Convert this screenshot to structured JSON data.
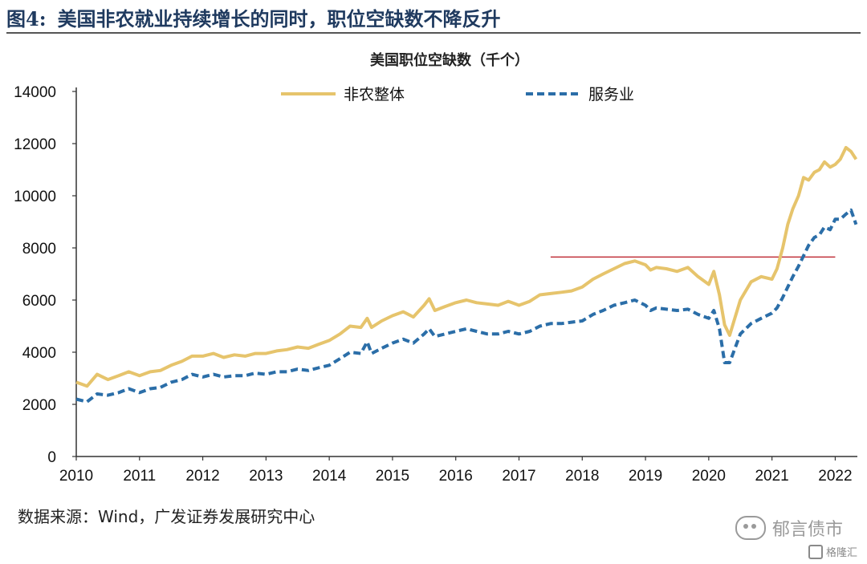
{
  "figure": {
    "label": "图4:",
    "title": "美国非农就业持续增长的同时，职位空缺数不降反升",
    "source": "数据来源：Wind，广发证券发展研究中心",
    "watermark": "郁言债市",
    "logo_text": "格隆汇"
  },
  "colors": {
    "title": "#1f3a5f",
    "series_total": "#e6c46c",
    "series_services": "#2b6ea8",
    "reference_line": "#c0303a"
  },
  "chart_data": {
    "type": "line",
    "title": "美国职位空缺数（千个）",
    "xlabel": "",
    "ylabel": "",
    "ylim": [
      0,
      14000
    ],
    "yticks": [
      "0",
      "2000",
      "4000",
      "6000",
      "8000",
      "10000",
      "12000",
      "14000"
    ],
    "xticks": [
      "2010",
      "2011",
      "2012",
      "2013",
      "2014",
      "2015",
      "2016",
      "2017",
      "2018",
      "2019",
      "2020",
      "2021",
      "2022"
    ],
    "xlim": [
      2010.0,
      2022.35
    ],
    "legend_position": "top",
    "grid": false,
    "series": [
      {
        "name": "非农整体",
        "style": "solid",
        "x": [
          2010.0,
          2010.17,
          2010.33,
          2010.5,
          2010.67,
          2010.83,
          2011.0,
          2011.17,
          2011.33,
          2011.5,
          2011.67,
          2011.83,
          2012.0,
          2012.17,
          2012.33,
          2012.5,
          2012.67,
          2012.83,
          2013.0,
          2013.17,
          2013.33,
          2013.5,
          2013.67,
          2013.83,
          2014.0,
          2014.17,
          2014.33,
          2014.5,
          2014.6,
          2014.67,
          2014.83,
          2015.0,
          2015.17,
          2015.33,
          2015.5,
          2015.58,
          2015.67,
          2015.83,
          2016.0,
          2016.17,
          2016.33,
          2016.5,
          2016.67,
          2016.83,
          2017.0,
          2017.17,
          2017.33,
          2017.5,
          2017.67,
          2017.83,
          2018.0,
          2018.17,
          2018.33,
          2018.5,
          2018.67,
          2018.83,
          2019.0,
          2019.08,
          2019.17,
          2019.33,
          2019.5,
          2019.67,
          2019.83,
          2020.0,
          2020.08,
          2020.17,
          2020.25,
          2020.33,
          2020.5,
          2020.67,
          2020.83,
          2021.0,
          2021.08,
          2021.17,
          2021.25,
          2021.33,
          2021.42,
          2021.5,
          2021.58,
          2021.67,
          2021.75,
          2021.83,
          2021.92,
          2022.0,
          2022.08,
          2022.17,
          2022.25,
          2022.33
        ],
        "values": [
          2850,
          2700,
          3150,
          2950,
          3100,
          3250,
          3100,
          3250,
          3300,
          3500,
          3650,
          3850,
          3850,
          3950,
          3800,
          3900,
          3850,
          3950,
          3950,
          4050,
          4100,
          4200,
          4150,
          4300,
          4450,
          4700,
          5000,
          4950,
          5300,
          4950,
          5200,
          5400,
          5550,
          5350,
          5800,
          6050,
          5600,
          5750,
          5900,
          6000,
          5900,
          5850,
          5800,
          5950,
          5800,
          5950,
          6200,
          6250,
          6300,
          6350,
          6500,
          6800,
          7000,
          7200,
          7400,
          7500,
          7350,
          7150,
          7250,
          7200,
          7100,
          7250,
          6900,
          6600,
          7100,
          6200,
          5050,
          4650,
          6000,
          6700,
          6900,
          6800,
          7200,
          8000,
          8900,
          9500,
          10000,
          10700,
          10600,
          10900,
          11000,
          11300,
          11100,
          11200,
          11400,
          11850,
          11700,
          11400
        ]
      },
      {
        "name": "服务业",
        "style": "dashed",
        "x": [
          2010.0,
          2010.17,
          2010.33,
          2010.5,
          2010.67,
          2010.83,
          2011.0,
          2011.17,
          2011.33,
          2011.5,
          2011.67,
          2011.83,
          2012.0,
          2012.17,
          2012.33,
          2012.5,
          2012.67,
          2012.83,
          2013.0,
          2013.17,
          2013.33,
          2013.5,
          2013.67,
          2013.83,
          2014.0,
          2014.17,
          2014.33,
          2014.5,
          2014.6,
          2014.67,
          2014.83,
          2015.0,
          2015.17,
          2015.33,
          2015.5,
          2015.58,
          2015.67,
          2015.83,
          2016.0,
          2016.17,
          2016.33,
          2016.5,
          2016.67,
          2016.83,
          2017.0,
          2017.17,
          2017.33,
          2017.5,
          2017.67,
          2017.83,
          2018.0,
          2018.17,
          2018.33,
          2018.5,
          2018.67,
          2018.83,
          2019.0,
          2019.08,
          2019.17,
          2019.33,
          2019.5,
          2019.67,
          2019.83,
          2020.0,
          2020.08,
          2020.17,
          2020.25,
          2020.33,
          2020.5,
          2020.67,
          2020.83,
          2021.0,
          2021.08,
          2021.17,
          2021.25,
          2021.33,
          2021.42,
          2021.5,
          2021.58,
          2021.67,
          2021.75,
          2021.83,
          2021.92,
          2022.0,
          2022.08,
          2022.17,
          2022.25,
          2022.33
        ],
        "values": [
          2200,
          2100,
          2400,
          2350,
          2450,
          2600,
          2450,
          2600,
          2650,
          2850,
          2950,
          3150,
          3050,
          3150,
          3050,
          3100,
          3100,
          3200,
          3150,
          3250,
          3250,
          3350,
          3300,
          3400,
          3500,
          3750,
          4000,
          3950,
          4400,
          3950,
          4150,
          4350,
          4500,
          4350,
          4700,
          4900,
          4600,
          4700,
          4800,
          4900,
          4800,
          4700,
          4700,
          4800,
          4700,
          4800,
          5000,
          5100,
          5100,
          5150,
          5200,
          5450,
          5600,
          5800,
          5900,
          6000,
          5800,
          5600,
          5700,
          5650,
          5600,
          5650,
          5450,
          5300,
          5600,
          4900,
          3600,
          3600,
          4700,
          5100,
          5300,
          5500,
          5700,
          6100,
          6500,
          6900,
          7300,
          7700,
          8100,
          8400,
          8500,
          8800,
          8700,
          9100,
          9100,
          9300,
          9450,
          8900
        ]
      }
    ],
    "reference_line": {
      "y": 7650,
      "x_from": 2017.5,
      "x_to": 2022.0
    }
  }
}
